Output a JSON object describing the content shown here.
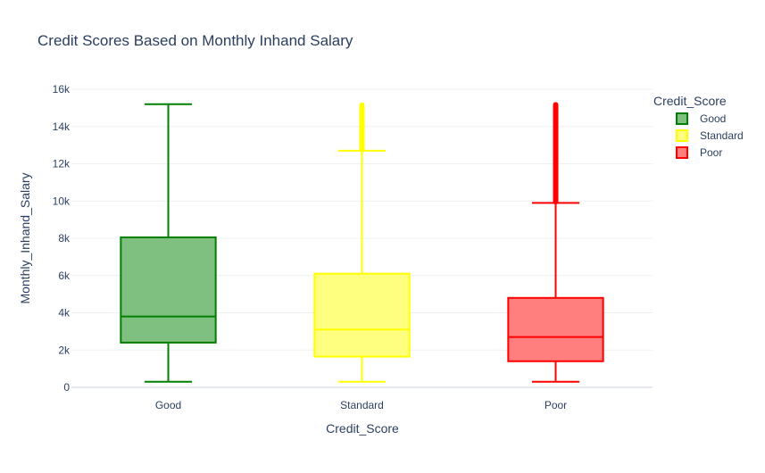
{
  "chart_data": {
    "type": "box",
    "title": "Credit Scores Based on Monthly Inhand Salary",
    "xlabel": "Credit_Score",
    "ylabel": "Monthly_Inhand_Salary",
    "ylim": [
      0,
      16000
    ],
    "yticks": [
      0,
      2000,
      4000,
      6000,
      8000,
      10000,
      12000,
      14000,
      16000
    ],
    "ytick_labels": [
      "0",
      "2k",
      "4k",
      "6k",
      "8k",
      "10k",
      "12k",
      "14k",
      "16k"
    ],
    "grid": true,
    "legend": {
      "title": "Credit_Score",
      "placement": "top-right"
    },
    "categories": [
      "Good",
      "Standard",
      "Poor"
    ],
    "series": [
      {
        "name": "Good",
        "color": "#008000",
        "fill": "#7fbf7f",
        "min": 300,
        "q1": 2400,
        "median": 3800,
        "q3": 8050,
        "upper_fence": 15200,
        "outliers_from": null,
        "outliers_to": null
      },
      {
        "name": "Standard",
        "color": "#ffff00",
        "fill": "#ffff7f",
        "min": 300,
        "q1": 1650,
        "median": 3100,
        "q3": 6100,
        "upper_fence": 12700,
        "outliers_from": 12750,
        "outliers_to": 15200
      },
      {
        "name": "Poor",
        "color": "#ff0000",
        "fill": "#ff7f7f",
        "min": 300,
        "q1": 1400,
        "median": 2700,
        "q3": 4800,
        "upper_fence": 9900,
        "outliers_from": 9950,
        "outliers_to": 15200
      }
    ]
  }
}
